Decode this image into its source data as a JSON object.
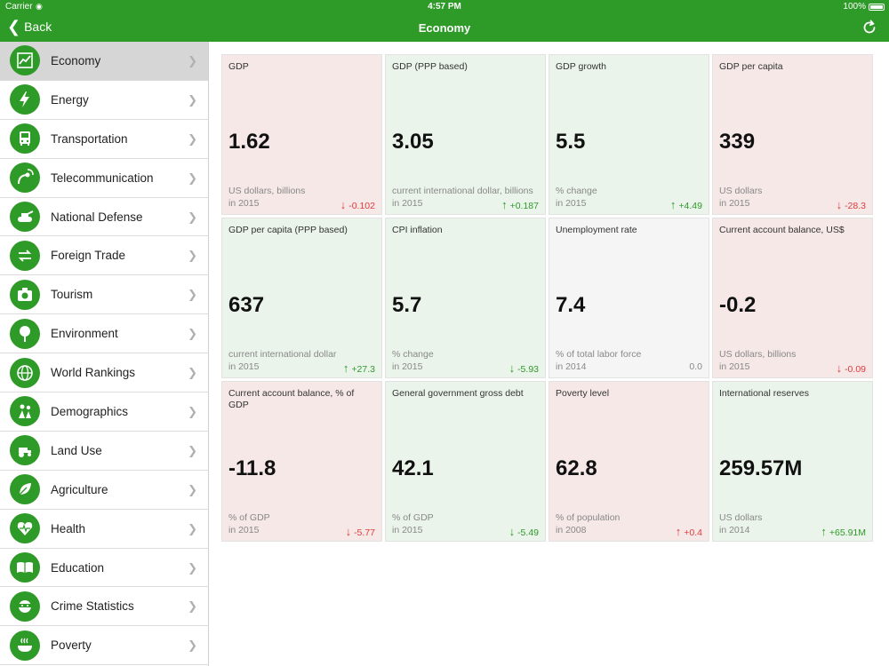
{
  "status": {
    "carrier": "Carrier",
    "time": "4:57 PM",
    "battery": "100%"
  },
  "nav": {
    "back_label": "Back",
    "title": "Economy"
  },
  "sidebar": {
    "items": [
      {
        "label": "Economy",
        "icon": "chart-icon",
        "active": true
      },
      {
        "label": "Energy",
        "icon": "lightning-icon"
      },
      {
        "label": "Transportation",
        "icon": "bus-icon"
      },
      {
        "label": "Telecommunication",
        "icon": "satellite-icon"
      },
      {
        "label": "National Defense",
        "icon": "tank-icon"
      },
      {
        "label": "Foreign Trade",
        "icon": "exchange-icon"
      },
      {
        "label": "Tourism",
        "icon": "camera-icon"
      },
      {
        "label": "Environment",
        "icon": "tree-icon"
      },
      {
        "label": "World Rankings",
        "icon": "globe-icon"
      },
      {
        "label": "Demographics",
        "icon": "people-icon"
      },
      {
        "label": "Land Use",
        "icon": "tractor-icon"
      },
      {
        "label": "Agriculture",
        "icon": "leaf-icon"
      },
      {
        "label": "Health",
        "icon": "heart-icon"
      },
      {
        "label": "Education",
        "icon": "book-icon"
      },
      {
        "label": "Crime Statistics",
        "icon": "robber-icon"
      },
      {
        "label": "Poverty",
        "icon": "bowl-icon"
      }
    ]
  },
  "cards": [
    {
      "title": "GDP",
      "value": "1.62",
      "unit": "US dollars, billions",
      "year": "in 2015",
      "change": "-0.102",
      "dir": "down",
      "bg": "red"
    },
    {
      "title": "GDP (PPP based)",
      "value": "3.05",
      "unit": "current international dollar, billions",
      "year": "in 2015",
      "change": "+0.187",
      "dir": "up",
      "bg": "green"
    },
    {
      "title": "GDP growth",
      "value": "5.5",
      "unit": "% change",
      "year": "in 2015",
      "change": "+4.49",
      "dir": "up",
      "bg": "green"
    },
    {
      "title": "GDP per capita",
      "value": "339",
      "unit": "US dollars",
      "year": "in 2015",
      "change": "-28.3",
      "dir": "down",
      "bg": "red"
    },
    {
      "title": "GDP per capita (PPP based)",
      "value": "637",
      "unit": "current international dollar",
      "year": "in 2015",
      "change": "+27.3",
      "dir": "up",
      "bg": "green"
    },
    {
      "title": "CPI inflation",
      "value": "5.7",
      "unit": "% change",
      "year": "in 2015",
      "change": "-5.93",
      "dir": "down-good",
      "bg": "green"
    },
    {
      "title": "Unemployment rate",
      "value": "7.4",
      "unit": "% of total labor force",
      "year": "in 2014",
      "change": "0.0",
      "dir": "none",
      "bg": "gray"
    },
    {
      "title": "Current account balance, US$",
      "value": "-0.2",
      "unit": "US dollars, billions",
      "year": "in 2015",
      "change": "-0.09",
      "dir": "down",
      "bg": "red"
    },
    {
      "title": "Current account balance, % of GDP",
      "value": "-11.8",
      "unit": "% of GDP",
      "year": "in 2015",
      "change": "-5.77",
      "dir": "down",
      "bg": "red"
    },
    {
      "title": "General government gross debt",
      "value": "42.1",
      "unit": "% of GDP",
      "year": "in 2015",
      "change": "-5.49",
      "dir": "down-good",
      "bg": "green"
    },
    {
      "title": "Poverty level",
      "value": "62.8",
      "unit": "% of population",
      "year": "in 2008",
      "change": "+0.4",
      "dir": "up-bad",
      "bg": "red"
    },
    {
      "title": "International reserves",
      "value": "259.57M",
      "unit": "US dollars",
      "year": "in 2014",
      "change": "+65.91M",
      "dir": "up",
      "bg": "green"
    }
  ],
  "colors": {
    "brand": "#2e9a27",
    "negative": "#e03b3b",
    "positive": "#2e9a27"
  }
}
